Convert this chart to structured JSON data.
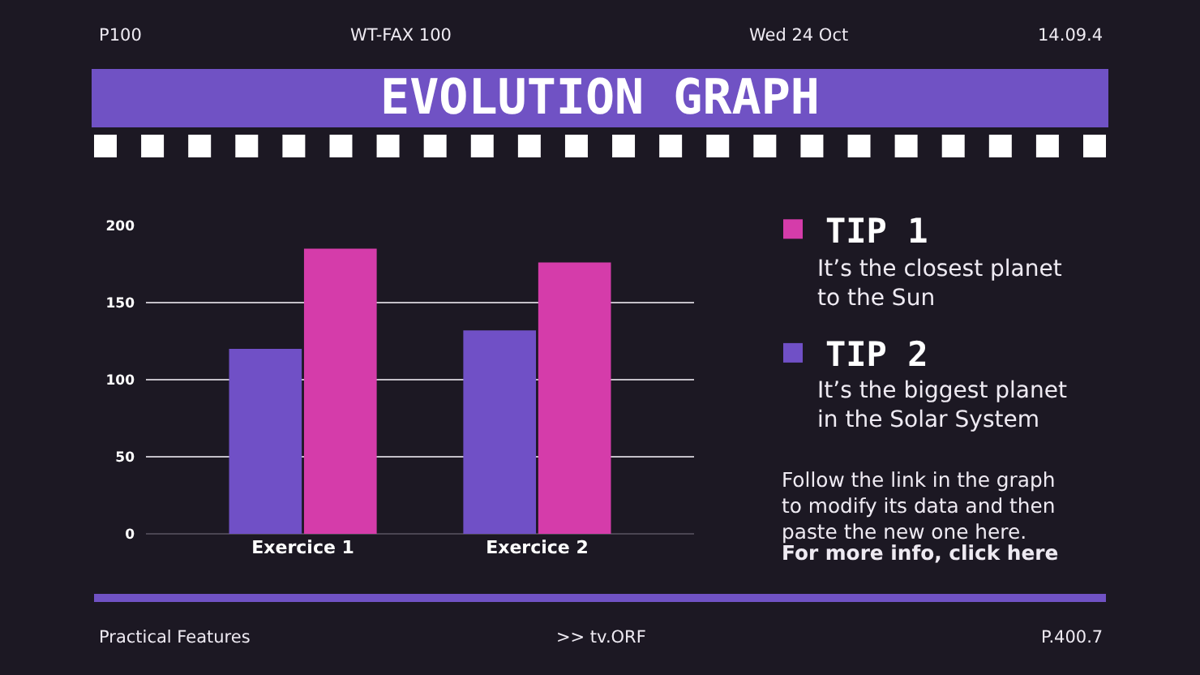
{
  "chart_data": {
    "type": "bar",
    "title": "EVOLUTION GRAPH",
    "categories": [
      "Exercice 1",
      "Exercice 2"
    ],
    "series": [
      {
        "name": "TIP 2",
        "color": "#7050c6",
        "values": [
          120,
          132
        ]
      },
      {
        "name": "TIP 1",
        "color": "#d53caa",
        "values": [
          185,
          176
        ]
      }
    ],
    "ylim": [
      0,
      200
    ],
    "yticks": [
      0,
      50,
      100,
      150,
      200
    ],
    "grid": "y",
    "legend": "right",
    "annotations": [
      "P100",
      "WT-FAX 100",
      "Wed 24 Oct",
      "14.09.4",
      "It’s the closest planet\nto the Sun",
      "It’s the biggest planet\nin the Solar System",
      "Follow the link in the graph\nto modify its data and then\npaste the new one here.",
      "For more info, click here",
      "Practical Features",
      ">> tv.ORF",
      "P.400.7"
    ]
  }
}
